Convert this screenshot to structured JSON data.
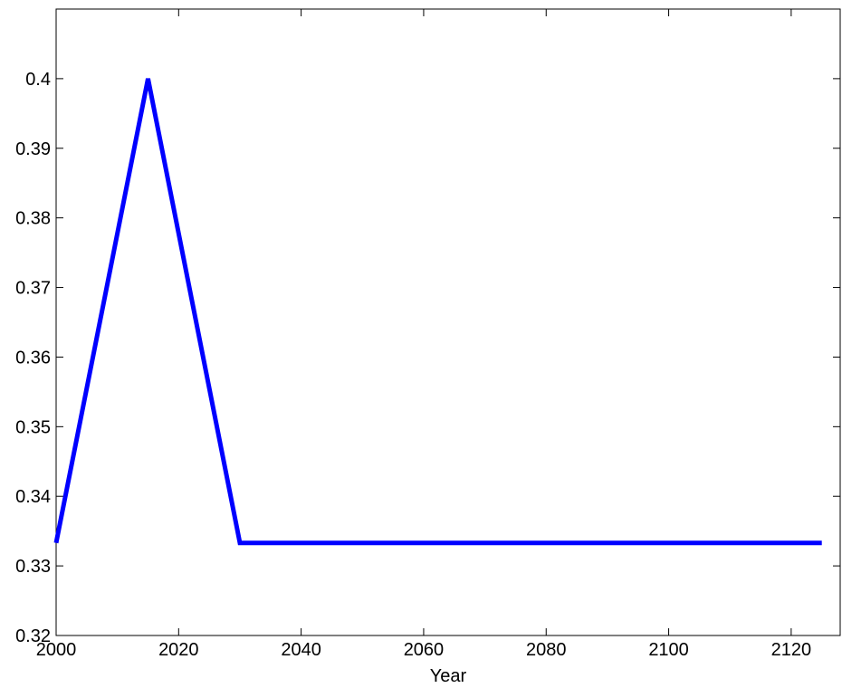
{
  "chart_data": {
    "type": "line",
    "title": "",
    "xlabel": "Year",
    "ylabel": "",
    "xlim": [
      2000,
      2128
    ],
    "ylim": [
      0.32,
      0.41
    ],
    "xticks": [
      2000,
      2020,
      2040,
      2060,
      2080,
      2100,
      2120
    ],
    "xtick_labels": [
      "2000",
      "2020",
      "2040",
      "2060",
      "2080",
      "2100",
      "2120"
    ],
    "yticks": [
      0.32,
      0.33,
      0.34,
      0.35,
      0.36,
      0.37,
      0.38,
      0.39,
      0.4
    ],
    "ytick_labels": [
      "0.32",
      "0.33",
      "0.34",
      "0.35",
      "0.36",
      "0.37",
      "0.38",
      "0.39",
      "0.4"
    ],
    "grid": false,
    "legend": "none",
    "series": [
      {
        "color": "#0000ff",
        "x": [
          2000,
          2015,
          2030,
          2125
        ],
        "y": [
          0.3333,
          0.4,
          0.3333,
          0.3333
        ]
      }
    ]
  }
}
